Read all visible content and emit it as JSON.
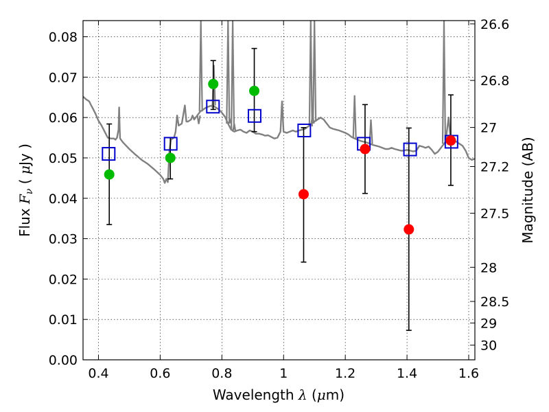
{
  "chart_data": {
    "type": "scatter",
    "xlabel_parts": [
      "Wavelength ",
      "λ",
      " (",
      "μ",
      "m)"
    ],
    "ylabel_parts": [
      "Flux ",
      "F",
      "ν",
      " ( ",
      "μ",
      "Jy )"
    ],
    "y2label": "Magnitude (AB)",
    "xlim": [
      0.35,
      1.62
    ],
    "ylim": [
      0.0,
      0.084
    ],
    "x_ticks": [
      0.4,
      0.6,
      0.8,
      1.0,
      1.2,
      1.4,
      1.6
    ],
    "x_tick_labels": [
      "0.4",
      "0.6",
      "0.8",
      "1",
      "1.2",
      "1.4",
      "1.6"
    ],
    "y_ticks": [
      0.0,
      0.01,
      0.02,
      0.03,
      0.04,
      0.05,
      0.06,
      0.07,
      0.08
    ],
    "y_tick_labels": [
      "0.00",
      "0.01",
      "0.02",
      "0.03",
      "0.04",
      "0.05",
      "0.06",
      "0.07",
      "0.08"
    ],
    "y2_tick_labels": [
      "26.6",
      "26.8",
      "27",
      "27.2",
      "27.5",
      "28",
      "28.5",
      "29",
      "30"
    ],
    "y2_tick_values": [
      26.6,
      26.8,
      27.0,
      27.2,
      27.5,
      28.0,
      28.5,
      29.0,
      30.0
    ],
    "grid": true,
    "colors": {
      "sed": "#808080",
      "model": "#0000cc",
      "detected": "#00bb00",
      "nondetected": "#ff0000",
      "errorbar": "#000000"
    },
    "series": [
      {
        "kind": "sed-line",
        "points": [
          [
            0.35,
            0.0652
          ],
          [
            0.36,
            0.0645
          ],
          [
            0.37,
            0.064
          ],
          [
            0.375,
            0.0632
          ],
          [
            0.38,
            0.0625
          ],
          [
            0.39,
            0.061
          ],
          [
            0.4,
            0.0592
          ],
          [
            0.41,
            0.058
          ],
          [
            0.42,
            0.0565
          ],
          [
            0.43,
            0.055
          ],
          [
            0.44,
            0.0548
          ],
          [
            0.45,
            0.0548
          ],
          [
            0.455,
            0.0545
          ],
          [
            0.46,
            0.055
          ],
          [
            0.465,
            0.057
          ],
          [
            0.467,
            0.0625
          ],
          [
            0.469,
            0.057
          ],
          [
            0.47,
            0.0548
          ],
          [
            0.48,
            0.0538
          ],
          [
            0.5,
            0.0522
          ],
          [
            0.52,
            0.0508
          ],
          [
            0.54,
            0.0495
          ],
          [
            0.56,
            0.0485
          ],
          [
            0.58,
            0.0472
          ],
          [
            0.6,
            0.0458
          ],
          [
            0.61,
            0.0448
          ],
          [
            0.615,
            0.0438
          ],
          [
            0.62,
            0.0448
          ],
          [
            0.625,
            0.044
          ],
          [
            0.63,
            0.0518
          ],
          [
            0.635,
            0.0545
          ],
          [
            0.64,
            0.0548
          ],
          [
            0.645,
            0.055
          ],
          [
            0.65,
            0.0565
          ],
          [
            0.655,
            0.0605
          ],
          [
            0.66,
            0.058
          ],
          [
            0.67,
            0.0585
          ],
          [
            0.68,
            0.063
          ],
          [
            0.685,
            0.059
          ],
          [
            0.69,
            0.059
          ],
          [
            0.7,
            0.0595
          ],
          [
            0.705,
            0.0605
          ],
          [
            0.71,
            0.0595
          ],
          [
            0.72,
            0.0605
          ],
          [
            0.73,
            0.0615
          ],
          [
            0.74,
            0.062
          ],
          [
            0.75,
            0.0625
          ],
          [
            0.76,
            0.0628
          ],
          [
            0.77,
            0.063
          ],
          [
            0.78,
            0.0625
          ],
          [
            0.79,
            0.062
          ],
          [
            0.8,
            0.0612
          ],
          [
            0.81,
            0.0602
          ],
          [
            0.82,
            0.0585
          ],
          [
            0.83,
            0.057
          ],
          [
            0.84,
            0.0565
          ],
          [
            0.85,
            0.0568
          ],
          [
            0.86,
            0.057
          ],
          [
            0.87,
            0.0565
          ],
          [
            0.88,
            0.0562
          ],
          [
            0.89,
            0.0568
          ],
          [
            0.9,
            0.0565
          ],
          [
            0.91,
            0.056
          ],
          [
            0.92,
            0.056
          ],
          [
            0.93,
            0.0558
          ],
          [
            0.94,
            0.0555
          ],
          [
            0.95,
            0.0556
          ],
          [
            0.96,
            0.0552
          ],
          [
            0.97,
            0.0548
          ],
          [
            0.98,
            0.055
          ],
          [
            0.99,
            0.0565
          ],
          [
            0.995,
            0.064
          ],
          [
            1.0,
            0.0565
          ],
          [
            1.01,
            0.0562
          ],
          [
            1.02,
            0.0565
          ],
          [
            1.03,
            0.0568
          ],
          [
            1.04,
            0.0565
          ],
          [
            1.05,
            0.0568
          ],
          [
            1.06,
            0.057
          ],
          [
            1.07,
            0.0572
          ],
          [
            1.08,
            0.0578
          ],
          [
            1.09,
            0.0585
          ],
          [
            1.1,
            0.059
          ],
          [
            1.11,
            0.0595
          ],
          [
            1.12,
            0.06
          ],
          [
            1.13,
            0.0595
          ],
          [
            1.14,
            0.0585
          ],
          [
            1.15,
            0.0575
          ],
          [
            1.16,
            0.0572
          ],
          [
            1.17,
            0.057
          ],
          [
            1.18,
            0.0568
          ],
          [
            1.19,
            0.0565
          ],
          [
            1.2,
            0.0562
          ],
          [
            1.21,
            0.0558
          ],
          [
            1.22,
            0.0552
          ],
          [
            1.23,
            0.0548
          ],
          [
            1.24,
            0.0545
          ],
          [
            1.25,
            0.0542
          ],
          [
            1.26,
            0.054
          ],
          [
            1.27,
            0.0538
          ],
          [
            1.28,
            0.0535
          ],
          [
            1.29,
            0.0532
          ],
          [
            1.3,
            0.053
          ],
          [
            1.31,
            0.0528
          ],
          [
            1.32,
            0.0525
          ],
          [
            1.33,
            0.0522
          ],
          [
            1.34,
            0.0522
          ],
          [
            1.35,
            0.0525
          ],
          [
            1.36,
            0.0522
          ],
          [
            1.37,
            0.052
          ],
          [
            1.38,
            0.0518
          ],
          [
            1.39,
            0.0518
          ],
          [
            1.4,
            0.052
          ],
          [
            1.41,
            0.0518
          ],
          [
            1.42,
            0.0516
          ],
          [
            1.43,
            0.0518
          ],
          [
            1.44,
            0.053
          ],
          [
            1.45,
            0.0528
          ],
          [
            1.46,
            0.0525
          ],
          [
            1.47,
            0.0528
          ],
          [
            1.48,
            0.052
          ],
          [
            1.49,
            0.051
          ],
          [
            1.5,
            0.0515
          ],
          [
            1.51,
            0.0525
          ],
          [
            1.52,
            0.0535
          ],
          [
            1.525,
            0.054
          ],
          [
            1.53,
            0.057
          ],
          [
            1.535,
            0.06
          ],
          [
            1.54,
            0.0555
          ],
          [
            1.55,
            0.0545
          ],
          [
            1.56,
            0.054
          ],
          [
            1.57,
            0.0535
          ],
          [
            1.58,
            0.053
          ],
          [
            1.59,
            0.0518
          ],
          [
            1.6,
            0.05
          ],
          [
            1.61,
            0.0495
          ],
          [
            1.62,
            0.0498
          ]
        ],
        "spikes": [
          [
            0.725,
            0.0584
          ],
          [
            0.732,
            0.084
          ],
          [
            0.77,
            0.0625
          ],
          [
            0.774,
            0.073
          ],
          [
            0.82,
            0.084
          ],
          [
            0.826,
            0.0595
          ],
          [
            0.835,
            0.084
          ],
          [
            0.84,
            0.0585
          ],
          [
            1.088,
            0.084
          ],
          [
            1.094,
            0.0605
          ],
          [
            1.1,
            0.084
          ],
          [
            1.23,
            0.0655
          ],
          [
            1.283,
            0.0595
          ],
          [
            1.52,
            0.084
          ]
        ]
      },
      {
        "kind": "model-squares",
        "x": [
          0.433,
          0.634,
          0.771,
          0.906,
          1.067,
          1.26,
          1.41,
          1.544
        ],
        "y": [
          0.051,
          0.0535,
          0.0627,
          0.0604,
          0.0568,
          0.0535,
          0.0521,
          0.054
        ]
      },
      {
        "kind": "detections",
        "x": [
          0.435,
          0.633,
          0.772,
          0.905
        ],
        "y": [
          0.0459,
          0.05,
          0.0683,
          0.0666
        ],
        "yerr_low": [
          0.0335,
          0.0448,
          0.062,
          0.0565
        ],
        "yerr_high": [
          0.0584,
          0.055,
          0.0741,
          0.0771
        ]
      },
      {
        "kind": "nondetections",
        "x": [
          1.065,
          1.264,
          1.406,
          1.542
        ],
        "y": [
          0.041,
          0.0522,
          0.0323,
          0.0543
        ],
        "yerr_low": [
          0.0242,
          0.0412,
          0.0073,
          0.0432
        ],
        "yerr_high": [
          0.0575,
          0.0632,
          0.0574,
          0.0656
        ]
      }
    ]
  }
}
